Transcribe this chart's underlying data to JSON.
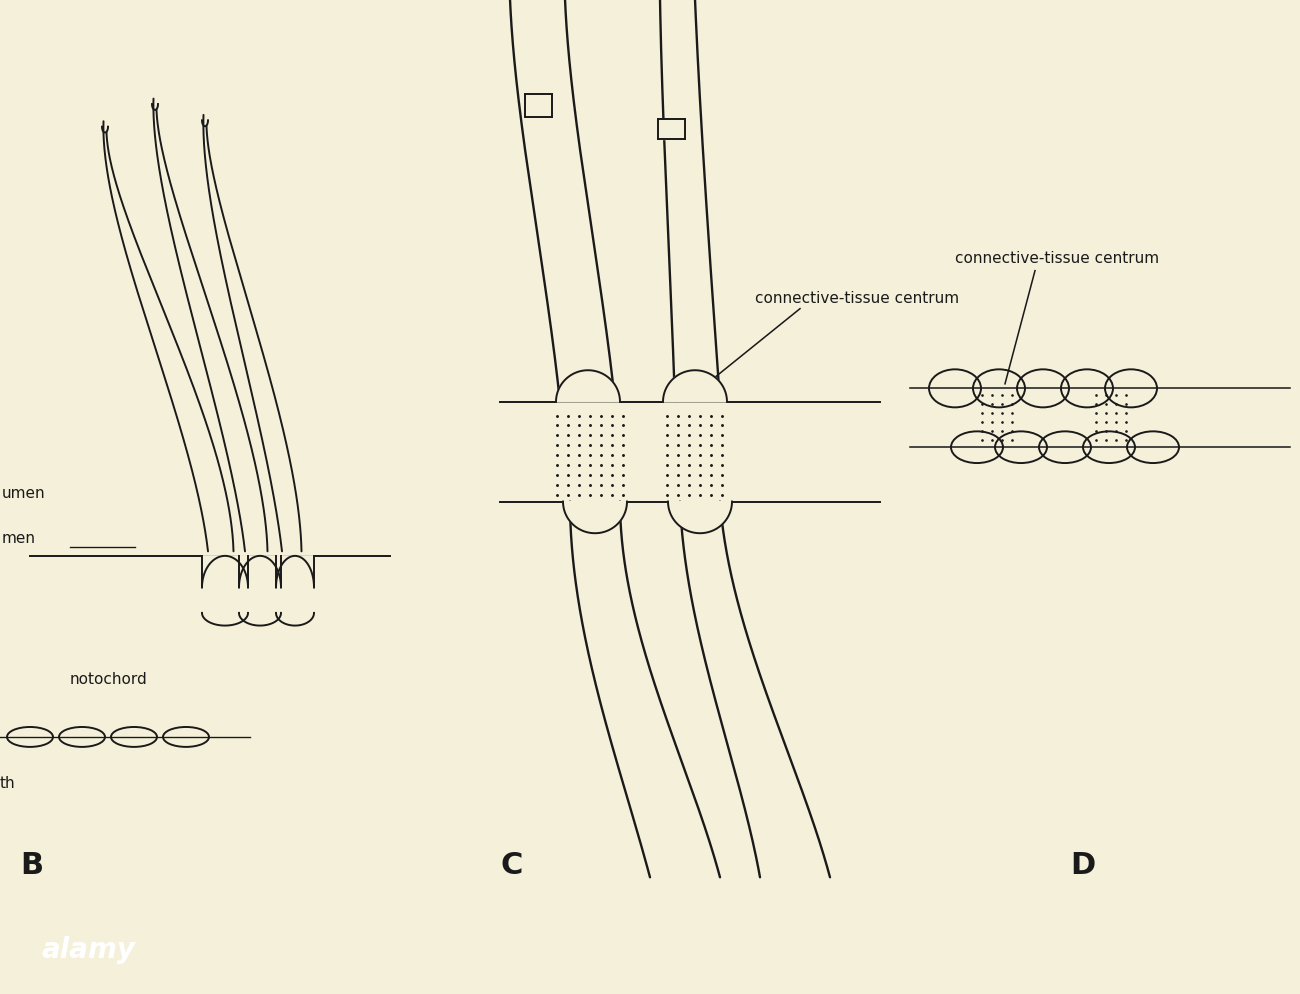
{
  "bg_color": "#f5f0da",
  "line_color": "#1a1a1a",
  "label_B": "B",
  "label_C": "C",
  "label_D": "D",
  "text_notochord": "notochord",
  "text_umen": "umen",
  "text_men": "men",
  "text_th": "th",
  "text_connective": "connective-tissue centrum",
  "alamy_bar_color": "#000000",
  "alamy_text_color": "#ffffff"
}
